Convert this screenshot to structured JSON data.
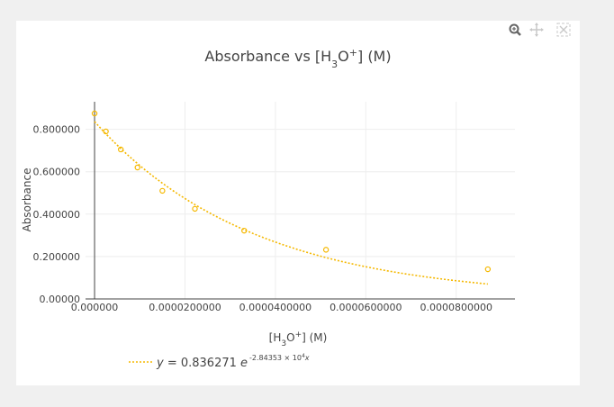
{
  "toolbar": {
    "zoom_icon": "magnifier-icon",
    "pan_icon": "pan-arrows-icon",
    "reset_icon": "autoscale-icon"
  },
  "chart_data": {
    "type": "scatter",
    "title": "Absorbance vs [H3O+] (M)",
    "xlabel": "[H3O+] (M)",
    "ylabel": "Absorbance",
    "xlim": [
      -2e-06,
      9.3e-05
    ],
    "ylim": [
      0,
      0.93
    ],
    "x_ticks": [
      0,
      2e-05,
      4e-05,
      6e-05,
      8e-05
    ],
    "x_tick_labels": [
      "0.000000",
      "0.0000200000",
      "0.0000400000",
      "0.0000600000",
      "0.0000800000"
    ],
    "y_ticks": [
      0,
      0.2,
      0.4,
      0.6,
      0.8
    ],
    "y_tick_labels": [
      "0.00000",
      "0.200000",
      "0.400000",
      "0.600000",
      "0.800000"
    ],
    "grid": true,
    "legend_position": "bottom-left",
    "colors": {
      "marker": "#f5b800",
      "fit": "#f5b800"
    },
    "series": [
      {
        "mode": "markers",
        "x": [
          0,
          2.5e-06,
          5.8e-06,
          9.5e-06,
          1.5e-05,
          2.22e-05,
          3.31e-05,
          5.12e-05,
          8.7e-05
        ],
        "y": [
          0.875,
          0.79,
          0.705,
          0.62,
          0.51,
          0.425,
          0.322,
          0.232,
          0.14
        ]
      },
      {
        "mode": "lines",
        "fit": {
          "a": 0.836271,
          "b": -28435.3,
          "x_start": 0,
          "x_end": 8.7e-05
        }
      }
    ],
    "legend": [
      {
        "equation_prefix": "y = 0.836271 ",
        "equation_base": "e",
        "equation_exponent": "-2.84353 × 10",
        "exponent_power": "4",
        "exponent_var": "x"
      }
    ]
  }
}
